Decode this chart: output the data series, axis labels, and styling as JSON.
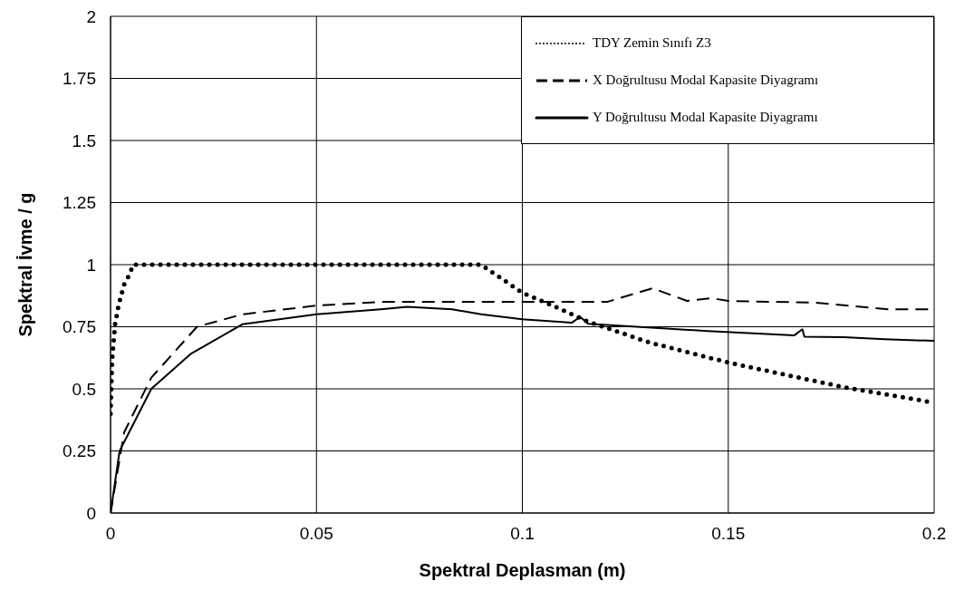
{
  "chart_data": {
    "type": "line",
    "xlabel": "Spektral Deplasman (m)",
    "ylabel": "Spektral İvme / g",
    "xlim": [
      0,
      0.2
    ],
    "xticks": [
      0,
      0.05,
      0.1,
      0.15,
      0.2
    ],
    "ylim": [
      0,
      2
    ],
    "yticks": [
      0,
      0.25,
      0.5,
      0.75,
      1,
      1.25,
      1.5,
      1.75,
      2
    ],
    "grid": true,
    "legend": "top right",
    "series": [
      {
        "name": "TDY Zemin Sınıfı Z3",
        "color": "#000000",
        "line_style": "dotted",
        "x": [
          0,
          0.0004,
          0.0011,
          0.002,
          0.0033,
          0.0046,
          0.0055,
          0.02,
          0.04,
          0.06,
          0.08,
          0.09,
          0.1,
          0.1067,
          0.116,
          0.131,
          0.15,
          0.178,
          0.198,
          0.2
        ],
        "values": [
          0.4,
          0.62,
          0.76,
          0.84,
          0.92,
          0.96,
          1,
          1,
          1,
          1,
          1,
          1,
          0.887,
          0.84,
          0.77,
          0.686,
          0.606,
          0.507,
          0.45,
          0.44
        ]
      },
      {
        "name": "X Doğrultusu Modal Kapasite Diyagramı",
        "color": "#000000",
        "line_style": "dashed",
        "x": [
          0,
          0.0033,
          0.0099,
          0.021,
          0.032,
          0.05,
          0.0656,
          0.09,
          0.1206,
          0.1316,
          0.14,
          0.146,
          0.15,
          0.171,
          0.189,
          0.2
        ],
        "values": [
          0,
          0.325,
          0.545,
          0.75,
          0.8,
          0.835,
          0.85,
          0.85,
          0.85,
          0.905,
          0.854,
          0.865,
          0.854,
          0.847,
          0.82,
          0.82
        ]
      },
      {
        "name": "Y Doğrultusu Modal Kapasite Diyagramı",
        "color": "#000000",
        "line_style": "solid",
        "x": [
          0,
          0.0022,
          0.0099,
          0.0194,
          0.032,
          0.05,
          0.0656,
          0.072,
          0.083,
          0.09,
          0.1,
          0.112,
          0.114,
          0.116,
          0.145,
          0.166,
          0.168,
          0.1685,
          0.178,
          0.188,
          0.2
        ],
        "values": [
          0,
          0.25,
          0.5,
          0.64,
          0.76,
          0.8,
          0.82,
          0.83,
          0.82,
          0.8,
          0.78,
          0.766,
          0.79,
          0.762,
          0.733,
          0.715,
          0.74,
          0.71,
          0.708,
          0.7,
          0.693
        ]
      }
    ]
  }
}
